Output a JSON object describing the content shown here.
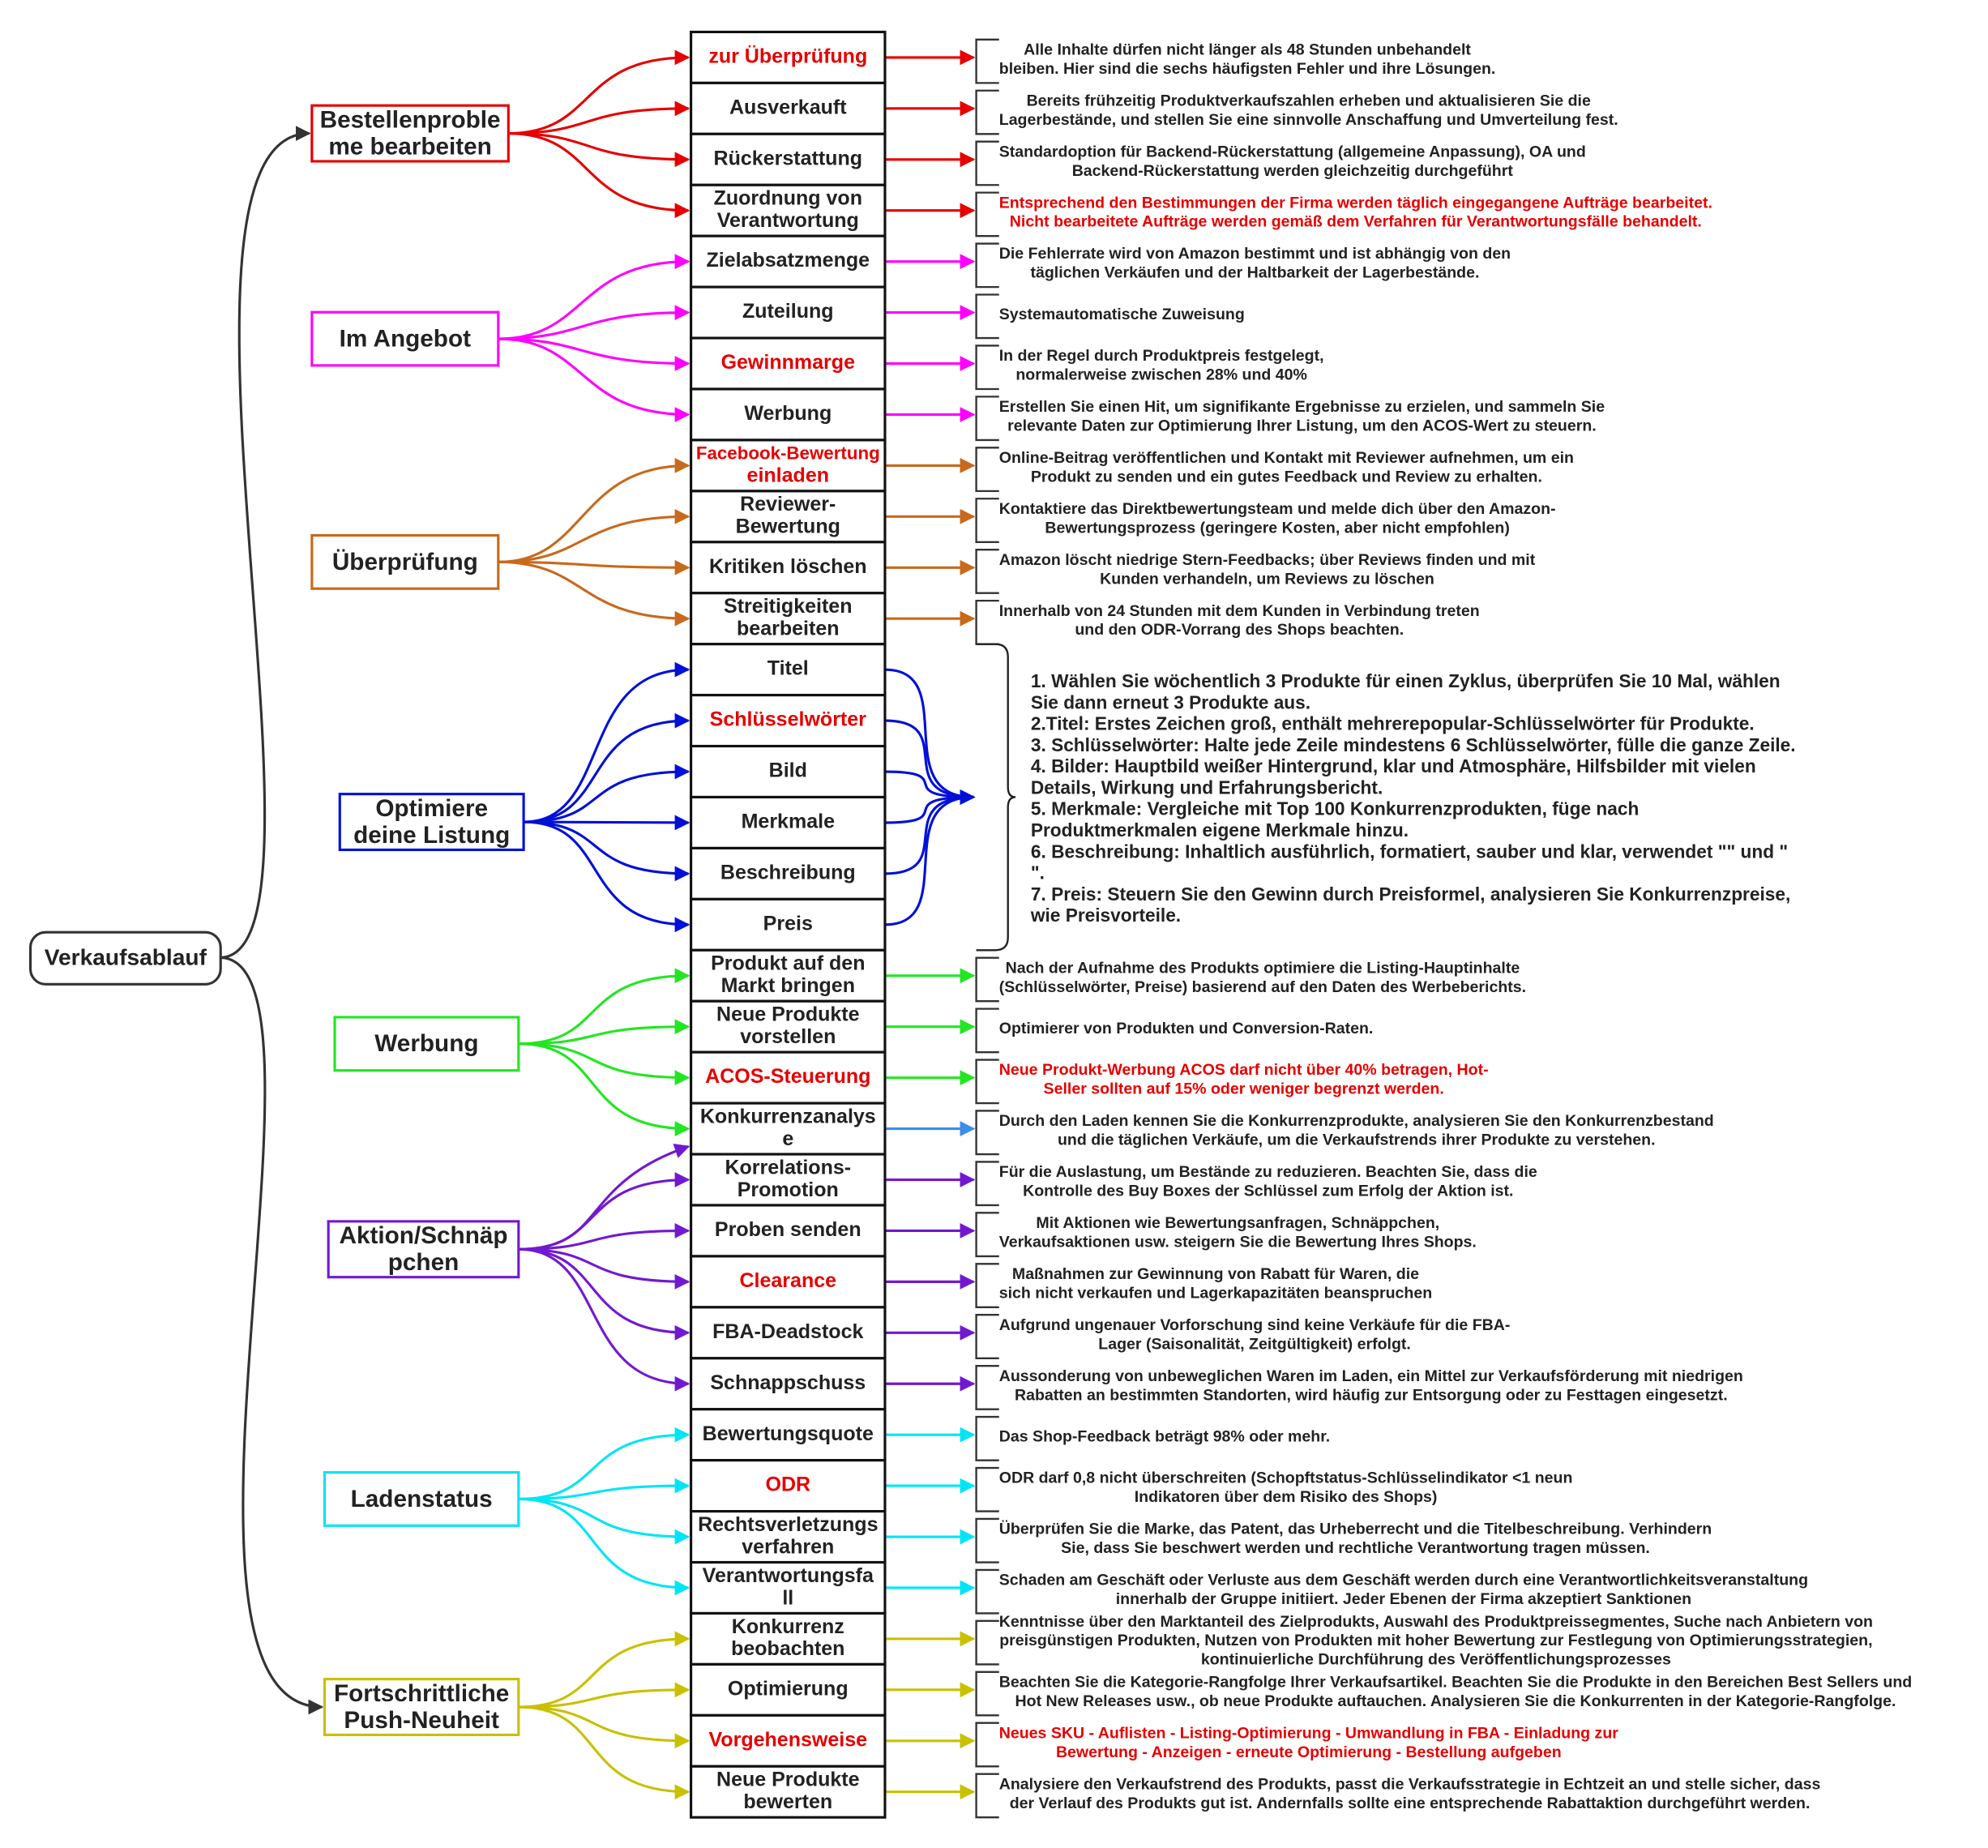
{
  "root": "Verkaufsablauf",
  "groups": [
    {
      "label": [
        "Bestellenproble",
        "me bearbeiten"
      ],
      "color": "#e60000",
      "items": [
        {
          "label": [
            "zur Überprüfung"
          ],
          "highlight": true,
          "description": [
            "Alle Inhalte dürfen nicht länger als 48 Stunden unbehandelt",
            "bleiben. Hier sind die sechs häufigsten Fehler und ihre Lösungen."
          ]
        },
        {
          "label": [
            "Ausverkauft"
          ],
          "description": [
            "Bereits frühzeitig Produktverkaufszahlen erheben und aktualisieren Sie die",
            "Lagerbestände, und stellen Sie eine sinnvolle Anschaffung und Umverteilung fest."
          ]
        },
        {
          "label": [
            "Rückerstattung"
          ],
          "description": [
            "Standardoption für Backend-Rückerstattung (allgemeine Anpassung), OA und",
            "Backend-Rückerstattung werden gleichzeitig durchgeführt"
          ]
        },
        {
          "label": [
            "Zuordnung von",
            "Verantwortung"
          ],
          "description": [
            "Entsprechend den Bestimmungen der Firma werden täglich eingegangene Aufträge bearbeitet.",
            "Nicht bearbeitete Aufträge werden gemäß dem Verfahren für Verantwortungsfälle behandelt."
          ],
          "description_highlight": true
        }
      ]
    },
    {
      "label": [
        "Im Angebot"
      ],
      "color": "#ff00ff",
      "items": [
        {
          "label": [
            "Zielabsatzmenge"
          ],
          "description": [
            "Die Fehlerrate wird von Amazon bestimmt und ist abhängig von den",
            "täglichen Verkäufen und der Haltbarkeit der Lagerbestände."
          ]
        },
        {
          "label": [
            "Zuteilung"
          ],
          "description": [
            "Systemautomatische Zuweisung"
          ]
        },
        {
          "label": [
            "Gewinnmarge"
          ],
          "highlight": true,
          "description": [
            "In der Regel durch Produktpreis festgelegt,",
            "normalerweise zwischen 28% und 40%"
          ]
        },
        {
          "label": [
            "Werbung"
          ],
          "description": [
            "Erstellen Sie einen Hit, um signifikante Ergebnisse zu erzielen, und sammeln Sie",
            "relevante Daten zur Optimierung Ihrer Listung, um den ACOS-Wert zu steuern."
          ]
        }
      ]
    },
    {
      "label": [
        "Überprüfung"
      ],
      "color": "#c8691c",
      "items": [
        {
          "label": [
            "Facebook-Bewertung",
            "einladen"
          ],
          "highlight": true,
          "description": [
            "Online-Beitrag veröffentlichen und Kontakt mit Reviewer aufnehmen, um ein",
            "Produkt zu senden und ein gutes Feedback und Review zu erhalten."
          ]
        },
        {
          "label": [
            "Reviewer-",
            "Bewertung"
          ],
          "description": [
            "Kontaktiere das Direktbewertungsteam und melde dich über den Amazon-",
            "Bewertungsprozess (geringere Kosten, aber nicht empfohlen)"
          ]
        },
        {
          "label": [
            "Kritiken löschen"
          ],
          "description": [
            "Amazon löscht niedrige Stern-Feedbacks; über Reviews finden und mit",
            "Kunden verhandeln, um Reviews zu löschen"
          ]
        },
        {
          "label": [
            "Streitigkeiten",
            "bearbeiten"
          ],
          "description": [
            "Innerhalb von 24 Stunden mit dem Kunden in Verbindung treten",
            "und den ODR-Vorrang des Shops beachten."
          ]
        }
      ]
    },
    {
      "label": [
        "Optimiere",
        "deine Listung"
      ],
      "color": "#0010d8",
      "items": [
        {
          "label": [
            "Titel"
          ]
        },
        {
          "label": [
            "Schlüsselwörter"
          ],
          "highlight": true
        },
        {
          "label": [
            "Bild"
          ]
        },
        {
          "label": [
            "Merkmale"
          ]
        },
        {
          "label": [
            "Beschreibung"
          ]
        },
        {
          "label": [
            "Preis"
          ]
        }
      ],
      "description": [
        "1. Wählen Sie wöchentlich 3 Produkte für einen Zyklus, überprüfen Sie 10 Mal, wählen",
        "Sie dann erneut 3 Produkte aus.",
        "2.Titel: Erstes Zeichen groß, enthält mehrerepopular-Schlüsselwörter für Produkte.",
        "3. Schlüsselwörter: Halte jede Zeile mindestens 6 Schlüsselwörter, fülle die ganze Zeile.",
        "4. Bilder: Hauptbild weißer Hintergrund, klar und Atmosphäre, Hilfsbilder mit vielen",
        "Details, Wirkung und Erfahrungsbericht.",
        "5. Merkmale: Vergleiche mit Top 100 Konkurrenzprodukten, füge nach",
        "Produktmerkmalen eigene Merkmale hinzu.",
        "6. Beschreibung: Inhaltlich ausführlich, formatiert, sauber und klar, verwendet \"\" und \"",
        "\".",
        "7. Preis: Steuern Sie den Gewinn durch Preisformel, analysieren Sie Konkurrenzpreise,",
        "wie Preisvorteile."
      ]
    },
    {
      "label": [
        "Werbung"
      ],
      "color": "#22e622",
      "items": [
        {
          "label": [
            "Produkt auf den",
            "Markt bringen"
          ],
          "description": [
            "Nach der Aufnahme des Produkts optimiere die Listing-Hauptinhalte",
            "(Schlüsselwörter, Preise) basierend auf den Daten des Werbeberichts."
          ]
        },
        {
          "label": [
            "Neue Produkte",
            "vorstellen"
          ],
          "description": [
            "Optimierer von Produkten und Conversion-Raten."
          ]
        },
        {
          "label": [
            "ACOS-Steuerung"
          ],
          "highlight": true,
          "description": [
            "Neue Produkt-Werbung ACOS darf nicht über 40% betragen, Hot-",
            "Seller sollten auf 15% oder weniger begrenzt werden."
          ],
          "description_highlight": true
        },
        {
          "label": [
            "Konkurrenzanalys",
            "e"
          ],
          "arrow_color": "#3b8de8",
          "description": [
            "Durch den Laden kennen Sie die Konkurrenzprodukte, analysieren Sie den Konkurrenzbestand",
            "und die täglichen Verkäufe, um die Verkaufstrends ihrer Produkte zu verstehen."
          ]
        }
      ]
    },
    {
      "label": [
        "Aktion/Schnäp",
        "pchen"
      ],
      "color": "#7219d0",
      "items": [
        {
          "label": [
            "Korrelations-",
            "Promotion"
          ],
          "description": [
            "Für die Auslastung, um Bestände zu reduzieren. Beachten Sie, dass die",
            "Kontrolle des Buy Boxes der Schlüssel zum Erfolg der Aktion ist."
          ]
        },
        {
          "label": [
            "Proben senden"
          ],
          "description": [
            "Mit Aktionen wie Bewertungsanfragen, Schnäppchen,",
            "Verkaufsaktionen usw. steigern Sie die Bewertung Ihres Shops."
          ]
        },
        {
          "label": [
            "Clearance"
          ],
          "highlight": true,
          "description": [
            "Maßnahmen zur Gewinnung von Rabatt für Waren, die",
            "sich nicht verkaufen und Lagerkapazitäten beanspruchen"
          ]
        },
        {
          "label": [
            "FBA-Deadstock"
          ],
          "description": [
            "Aufgrund ungenauer Vorforschung sind keine Verkäufe für die FBA-",
            "Lager (Saisonalität, Zeitgültigkeit) erfolgt."
          ]
        },
        {
          "label": [
            "Schnappschuss"
          ],
          "description": [
            "Aussonderung von unbeweglichen Waren im Laden, ein Mittel zur Verkaufsförderung mit niedrigen",
            "Rabatten an bestimmten Standorten, wird häufig zur Entsorgung oder zu Festtagen eingesetzt."
          ]
        }
      ]
    },
    {
      "label": [
        "Ladenstatus"
      ],
      "color": "#00e5f5",
      "items": [
        {
          "label": [
            "Bewertungsquote"
          ],
          "description": [
            "Das Shop-Feedback beträgt 98% oder mehr."
          ]
        },
        {
          "label": [
            "ODR"
          ],
          "highlight": true,
          "description": [
            "ODR darf 0,8 nicht überschreiten (Schopftstatus-Schlüsselindikator <1 neun",
            "Indikatoren über dem Risiko des Shops)"
          ]
        },
        {
          "label": [
            "Rechtsverletzungs",
            "verfahren"
          ],
          "description": [
            "Überprüfen Sie die Marke, das Patent, das Urheberrecht und die Titelbeschreibung. Verhindern",
            "Sie, dass Sie beschwert werden und rechtliche Verantwortung tragen müssen."
          ]
        },
        {
          "label": [
            "Verantwortungsfa",
            "ll"
          ],
          "description": [
            "Schaden am Geschäft oder Verluste aus dem Geschäft werden durch eine Verantwortlichkeitsveranstaltung",
            "innerhalb der Gruppe initiiert. Jeder Ebenen der Firma akzeptiert Sanktionen"
          ]
        }
      ]
    },
    {
      "label": [
        "Fortschrittliche",
        "Push-Neuheit"
      ],
      "color": "#c9c000",
      "items": [
        {
          "label": [
            "Konkurrenz",
            "beobachten"
          ],
          "description": [
            "Kenntnisse über den Marktanteil des Zielprodukts, Auswahl des Produktpreissegmentes, Suche nach Anbietern von",
            "preisgünstigen Produkten, Nutzen von Produkten mit hoher Bewertung zur Festlegung von Optimierungsstrategien,",
            "kontinuierliche Durchführung des Veröffentlichungsprozesses"
          ]
        },
        {
          "label": [
            "Optimierung"
          ],
          "description": [
            "Beachten Sie die Kategorie-Rangfolge Ihrer Verkaufsartikel. Beachten Sie die Produkte in den Bereichen Best Sellers und",
            "Hot New Releases usw., ob neue Produkte auftauchen. Analysieren Sie die Konkurrenten in der Kategorie-Rangfolge."
          ]
        },
        {
          "label": [
            "Vorgehensweise"
          ],
          "highlight": true,
          "description": [
            "Neues SKU - Auflisten - Listing-Optimierung - Umwandlung in FBA - Einladung zur",
            "Bewertung - Anzeigen - erneute Optimierung - Bestellung aufgeben"
          ],
          "description_highlight": true
        },
        {
          "label": [
            "Neue Produkte",
            "bewerten"
          ],
          "description": [
            "Analysiere den Verkaufstrend des Produkts, passt die Verkaufsstrategie in Echtzeit an und stelle sicher, dass",
            "der Verlauf des Produkts gut ist. Andernfalls sollte eine entsprechende Rabattaktion durchgeführt werden."
          ]
        }
      ]
    }
  ]
}
